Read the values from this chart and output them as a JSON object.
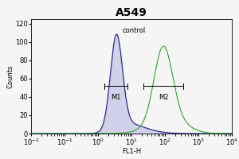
{
  "title": "A549",
  "xlabel": "FL1-H",
  "ylabel": "Counts",
  "xlim_log": [
    0.01,
    10000
  ],
  "ylim": [
    0,
    125
  ],
  "yticks": [
    0,
    20,
    40,
    60,
    80,
    100,
    120
  ],
  "control_color": "#222288",
  "sample_color": "#22aa22",
  "control_label": "control",
  "m1_label": "M1",
  "m2_label": "M2",
  "control_peak_log": 0.55,
  "control_peak_height": 102,
  "control_sigma_log": 0.18,
  "sample_peak_log": 1.95,
  "sample_peak_height": 88,
  "sample_sigma_log": 0.28,
  "bg_color": "#f5f5f5",
  "title_fontsize": 10,
  "axis_fontsize": 6,
  "label_fontsize": 6,
  "m1_x1_log": 0.18,
  "m1_x2_log": 0.88,
  "m1_y": 52,
  "m2_x1_log": 1.35,
  "m2_x2_log": 2.55,
  "m2_y": 52
}
